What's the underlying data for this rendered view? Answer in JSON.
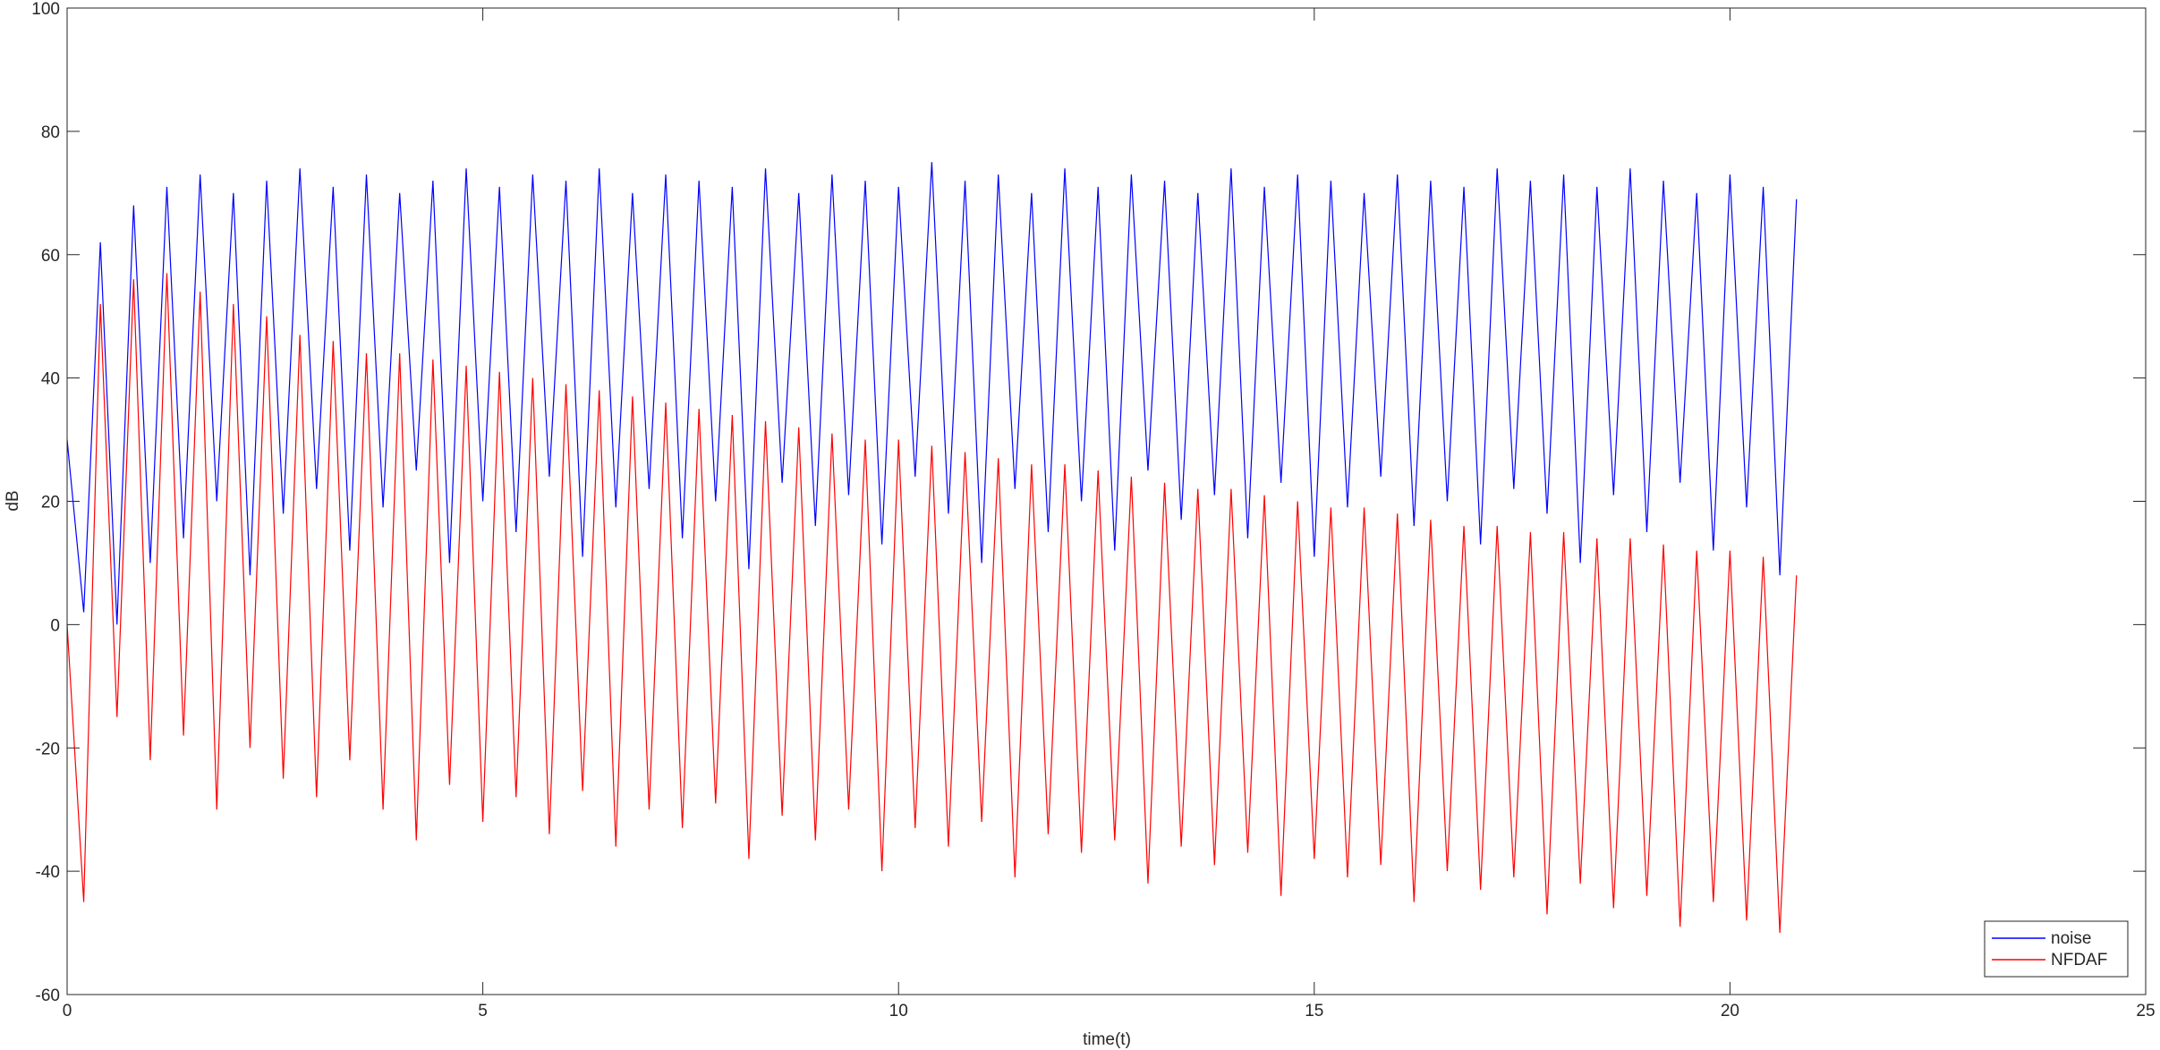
{
  "chart_data": {
    "type": "line",
    "xlabel": "time(t)",
    "ylabel": "dB",
    "xlim": [
      0,
      25
    ],
    "xticks": [
      0,
      5,
      10,
      15,
      20,
      25
    ],
    "ylim": [
      -60,
      100
    ],
    "yticks": [
      -60,
      -40,
      -20,
      0,
      20,
      40,
      60,
      80,
      100
    ],
    "legend": "lower right",
    "x": [
      0,
      0.2,
      0.4,
      0.6,
      0.8,
      1,
      1.2,
      1.4,
      1.6,
      1.8,
      2,
      2.2,
      2.4,
      2.6,
      2.8,
      3,
      3.2,
      3.4,
      3.6,
      3.8,
      4,
      4.2,
      4.4,
      4.6,
      4.8,
      5,
      5.2,
      5.4,
      5.6,
      5.8,
      6,
      6.2,
      6.4,
      6.6,
      6.8,
      7,
      7.2,
      7.4,
      7.6,
      7.8,
      8,
      8.2,
      8.4,
      8.6,
      8.8,
      9,
      9.2,
      9.4,
      9.6,
      9.8,
      10,
      10.2,
      10.4,
      10.6,
      10.8,
      11,
      11.2,
      11.4,
      11.6,
      11.8,
      12,
      12.2,
      12.4,
      12.6,
      12.8,
      13,
      13.2,
      13.4,
      13.6,
      13.8,
      14,
      14.2,
      14.4,
      14.6,
      14.8,
      15,
      15.2,
      15.4,
      15.6,
      15.8,
      16,
      16.2,
      16.4,
      16.6,
      16.8,
      17,
      17.2,
      17.4,
      17.6,
      17.8,
      18,
      18.2,
      18.4,
      18.6,
      18.8,
      19,
      19.2,
      19.4,
      19.6,
      19.8,
      20,
      20.2,
      20.4,
      20.6,
      20.8
    ],
    "series": [
      {
        "name": "noise",
        "color": "#0000ff",
        "values": [
          30,
          2,
          62,
          0,
          68,
          10,
          71,
          14,
          73,
          20,
          70,
          8,
          72,
          18,
          74,
          22,
          71,
          12,
          73,
          19,
          70,
          25,
          72,
          10,
          74,
          20,
          71,
          15,
          73,
          24,
          72,
          11,
          74,
          19,
          70,
          22,
          73,
          14,
          72,
          20,
          71,
          9,
          74,
          23,
          70,
          16,
          73,
          21,
          72,
          13,
          71,
          24,
          75,
          18,
          72,
          10,
          73,
          22,
          70,
          15,
          74,
          20,
          71,
          12,
          73,
          25,
          72,
          17,
          70,
          21,
          74,
          14,
          71,
          23,
          73,
          11,
          72,
          19,
          70,
          24,
          73,
          16,
          72,
          20,
          71,
          13,
          74,
          22,
          72,
          18,
          73,
          10,
          71,
          21,
          74,
          15,
          72,
          23,
          70,
          12,
          73,
          19,
          71,
          8,
          69
        ]
      },
      {
        "name": "NFDAF",
        "color": "#ff0000",
        "values": [
          0,
          -45,
          52,
          -15,
          56,
          -22,
          57,
          -18,
          54,
          -30,
          52,
          -20,
          50,
          -25,
          47,
          -28,
          46,
          -22,
          44,
          -30,
          44,
          -35,
          43,
          -26,
          42,
          -32,
          41,
          -28,
          40,
          -34,
          39,
          -27,
          38,
          -36,
          37,
          -30,
          36,
          -33,
          35,
          -29,
          34,
          -38,
          33,
          -31,
          32,
          -35,
          31,
          -30,
          30,
          -40,
          30,
          -33,
          29,
          -36,
          28,
          -32,
          27,
          -41,
          26,
          -34,
          26,
          -37,
          25,
          -35,
          24,
          -42,
          23,
          -36,
          22,
          -39,
          22,
          -37,
          21,
          -44,
          20,
          -38,
          19,
          -41,
          19,
          -39,
          18,
          -45,
          17,
          -40,
          16,
          -43,
          16,
          -41,
          15,
          -47,
          15,
          -42,
          14,
          -46,
          14,
          -44,
          13,
          -49,
          12,
          -45,
          12,
          -48,
          11,
          -50,
          8
        ]
      }
    ]
  }
}
